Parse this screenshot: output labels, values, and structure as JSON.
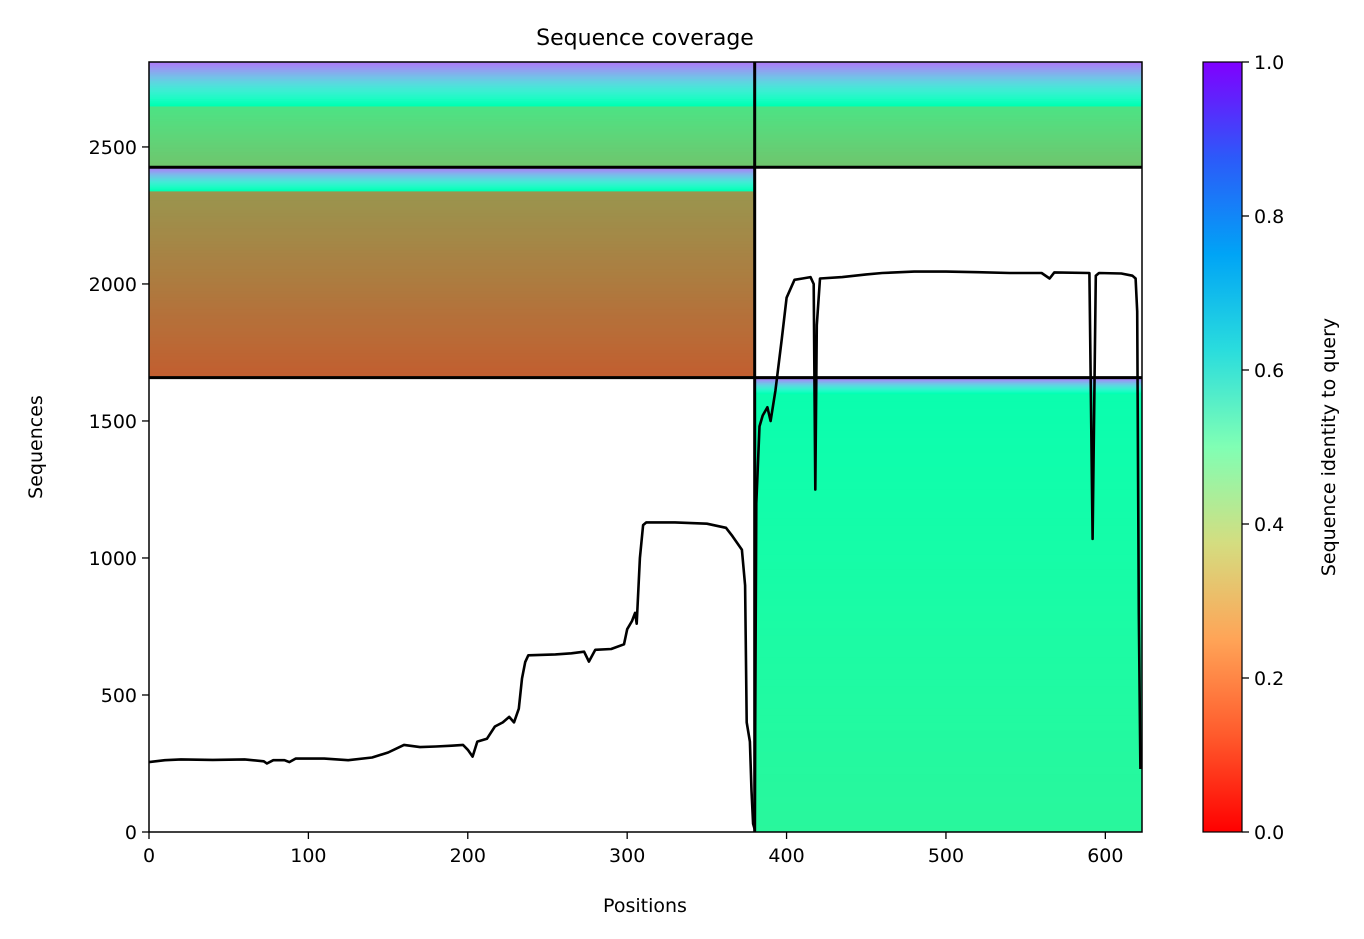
{
  "chart_data": {
    "type": "heatmap",
    "title": "Sequence coverage",
    "xlabel": "Positions",
    "ylabel": "Sequences",
    "xlim": [
      0,
      623
    ],
    "ylim": [
      0,
      2810
    ],
    "x_ticks": [
      0,
      100,
      200,
      300,
      400,
      500,
      600
    ],
    "y_ticks": [
      0,
      500,
      1000,
      1500,
      2000,
      2500
    ],
    "colorbar": {
      "label": "Sequence identity to query",
      "range": [
        0.0,
        1.0
      ],
      "ticks": [
        "0.0",
        "0.2",
        "0.4",
        "0.6",
        "0.8",
        "1.0"
      ],
      "colormap": "rainbow_r"
    },
    "chain_boundary_position": 380,
    "group_boundaries_sequences": [
      1658,
      2426
    ],
    "alignment_blocks": [
      {
        "name": "chain-2-paired",
        "x": [
          380,
          623
        ],
        "y": [
          0,
          1658
        ],
        "identity_bottom": 0.42,
        "identity_top": 0.48,
        "header_top": 1600,
        "header_identity": [
          0.5,
          0.85
        ]
      },
      {
        "name": "chain-1-unpaired",
        "x": [
          0,
          380
        ],
        "y": [
          1658,
          2426
        ],
        "identity_bottom": 0.12,
        "identity_top": 0.2,
        "header_top": 2340,
        "header_identity": [
          0.5,
          0.85
        ]
      },
      {
        "name": "both-chains-paired",
        "x": [
          0,
          623
        ],
        "y": [
          2426,
          2810
        ],
        "identity_bottom": 0.28,
        "identity_top": 0.35,
        "header_top": 2650,
        "header_identity": [
          0.5,
          0.85
        ]
      }
    ],
    "coverage_line": {
      "color": "#000000",
      "points": [
        [
          0,
          255
        ],
        [
          10,
          262
        ],
        [
          20,
          265
        ],
        [
          40,
          263
        ],
        [
          60,
          265
        ],
        [
          72,
          258
        ],
        [
          74,
          250
        ],
        [
          78,
          262
        ],
        [
          85,
          262
        ],
        [
          88,
          255
        ],
        [
          92,
          268
        ],
        [
          110,
          268
        ],
        [
          125,
          262
        ],
        [
          140,
          272
        ],
        [
          150,
          290
        ],
        [
          160,
          318
        ],
        [
          170,
          310
        ],
        [
          180,
          312
        ],
        [
          190,
          315
        ],
        [
          197,
          318
        ],
        [
          200,
          300
        ],
        [
          203,
          275
        ],
        [
          206,
          330
        ],
        [
          212,
          340
        ],
        [
          217,
          385
        ],
        [
          222,
          400
        ],
        [
          226,
          420
        ],
        [
          229,
          400
        ],
        [
          232,
          450
        ],
        [
          234,
          560
        ],
        [
          236,
          620
        ],
        [
          238,
          645
        ],
        [
          255,
          648
        ],
        [
          265,
          652
        ],
        [
          273,
          658
        ],
        [
          276,
          622
        ],
        [
          280,
          665
        ],
        [
          290,
          668
        ],
        [
          298,
          685
        ],
        [
          300,
          740
        ],
        [
          303,
          770
        ],
        [
          305,
          800
        ],
        [
          306,
          760
        ],
        [
          308,
          1000
        ],
        [
          310,
          1120
        ],
        [
          312,
          1130
        ],
        [
          330,
          1130
        ],
        [
          350,
          1125
        ],
        [
          362,
          1110
        ],
        [
          366,
          1080
        ],
        [
          372,
          1030
        ],
        [
          374,
          900
        ],
        [
          375,
          400
        ],
        [
          377,
          330
        ],
        [
          378,
          150
        ],
        [
          379,
          30
        ],
        [
          380,
          10
        ],
        [
          381,
          1200
        ],
        [
          383,
          1480
        ],
        [
          385,
          1520
        ],
        [
          388,
          1550
        ],
        [
          390,
          1500
        ],
        [
          393,
          1610
        ],
        [
          397,
          1800
        ],
        [
          400,
          1950
        ],
        [
          405,
          2015
        ],
        [
          410,
          2020
        ],
        [
          415,
          2025
        ],
        [
          417,
          2000
        ],
        [
          418,
          1250
        ],
        [
          419,
          1850
        ],
        [
          421,
          2020
        ],
        [
          435,
          2025
        ],
        [
          450,
          2035
        ],
        [
          460,
          2040
        ],
        [
          480,
          2045
        ],
        [
          500,
          2045
        ],
        [
          520,
          2043
        ],
        [
          540,
          2040
        ],
        [
          560,
          2040
        ],
        [
          565,
          2020
        ],
        [
          568,
          2042
        ],
        [
          590,
          2040
        ],
        [
          592,
          1070
        ],
        [
          594,
          2030
        ],
        [
          596,
          2040
        ],
        [
          610,
          2038
        ],
        [
          617,
          2030
        ],
        [
          619,
          2020
        ],
        [
          620,
          1900
        ],
        [
          621,
          800
        ],
        [
          622,
          230
        ]
      ]
    }
  }
}
